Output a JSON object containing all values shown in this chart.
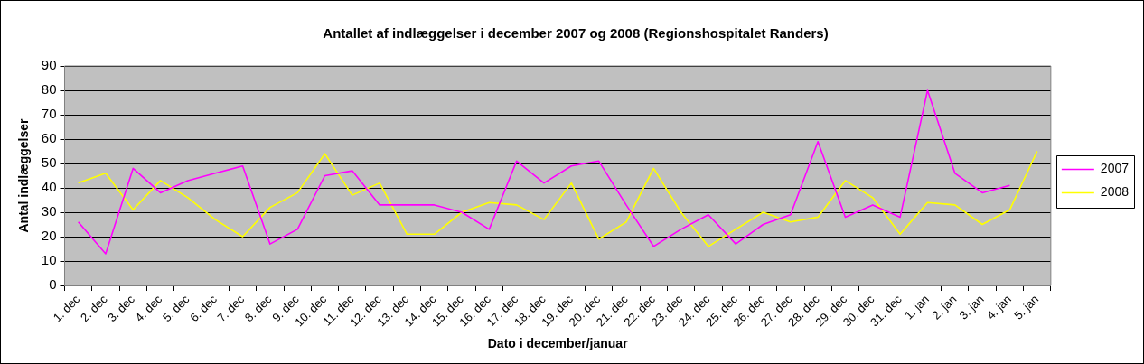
{
  "chart_data": {
    "type": "line",
    "title": "Antallet af indlæggelser i december 2007 og 2008 (Regionshospitalet Randers)",
    "xlabel": "Dato i december/januar",
    "ylabel": "Antal indlæggelser",
    "categories": [
      "1. dec",
      "2. dec",
      "3. dec",
      "4. dec",
      "5. dec",
      "6. dec",
      "7. dec",
      "8. dec",
      "9. dec",
      "10. dec",
      "11. dec",
      "12. dec",
      "13. dec",
      "14. dec",
      "15. dec",
      "16. dec",
      "17. dec",
      "18. dec",
      "19. dec",
      "20. dec",
      "21. dec",
      "22. dec",
      "23. dec",
      "24. dec",
      "25. dec",
      "26. dec",
      "27. dec",
      "28. dec",
      "29. dec",
      "30. dec",
      "31. dec",
      "1. jan",
      "2. jan",
      "3. jan",
      "4. jan",
      "5. jan"
    ],
    "series": [
      {
        "name": "2007",
        "color": "#ff00ff",
        "values": [
          26,
          13,
          48,
          38,
          43,
          46,
          49,
          17,
          23,
          45,
          47,
          33,
          33,
          33,
          30,
          23,
          51,
          42,
          49,
          51,
          33,
          16,
          23,
          29,
          17,
          25,
          29,
          59,
          28,
          33,
          28,
          80,
          46,
          38,
          41,
          null
        ]
      },
      {
        "name": "2008",
        "color": "#ffff00",
        "values": [
          42,
          46,
          31,
          43,
          36,
          27,
          20,
          32,
          38,
          54,
          37,
          42,
          21,
          21,
          30,
          34,
          33,
          27,
          42,
          19,
          26,
          48,
          30,
          16,
          23,
          30,
          26,
          28,
          43,
          36,
          21,
          34,
          33,
          25,
          31,
          55
        ]
      }
    ],
    "ylim": [
      0,
      90
    ],
    "yticks": [
      0,
      10,
      20,
      30,
      40,
      50,
      60,
      70,
      80,
      90
    ],
    "grid": "y",
    "legend": "right",
    "marker": "none",
    "line_style": "solid"
  }
}
